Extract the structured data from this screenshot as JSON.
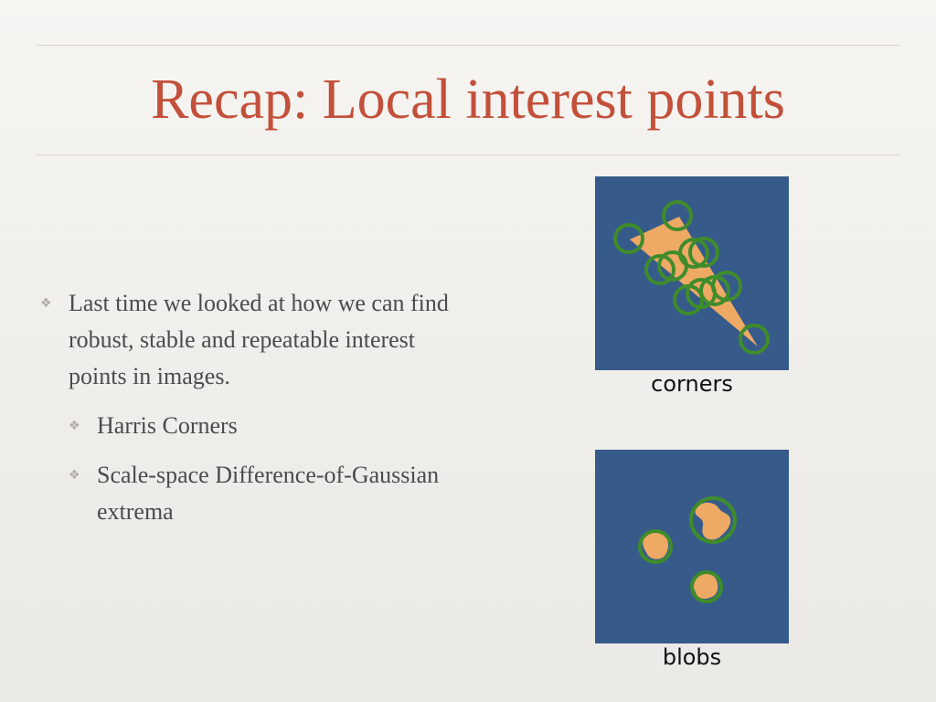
{
  "slide": {
    "title": "Recap: Local interest points",
    "bullet_glyph": "❖",
    "bullets": [
      {
        "level": 1,
        "text": "Last time we looked at how we can find robust, stable and repeatable interest points in images."
      },
      {
        "level": 2,
        "text": "Harris Corners"
      },
      {
        "level": 2,
        "text": "Scale-space Difference-of-Gaussian extrema"
      }
    ]
  },
  "figures": {
    "corners": {
      "caption": "corners"
    },
    "blobs": {
      "caption": "blobs"
    }
  },
  "colors": {
    "title": "#c3503a",
    "body_text": "#4b4b4b",
    "figure_background": "#365b8a",
    "shape_fill": "#eea964",
    "detection_circle": "#3f8c2b"
  }
}
